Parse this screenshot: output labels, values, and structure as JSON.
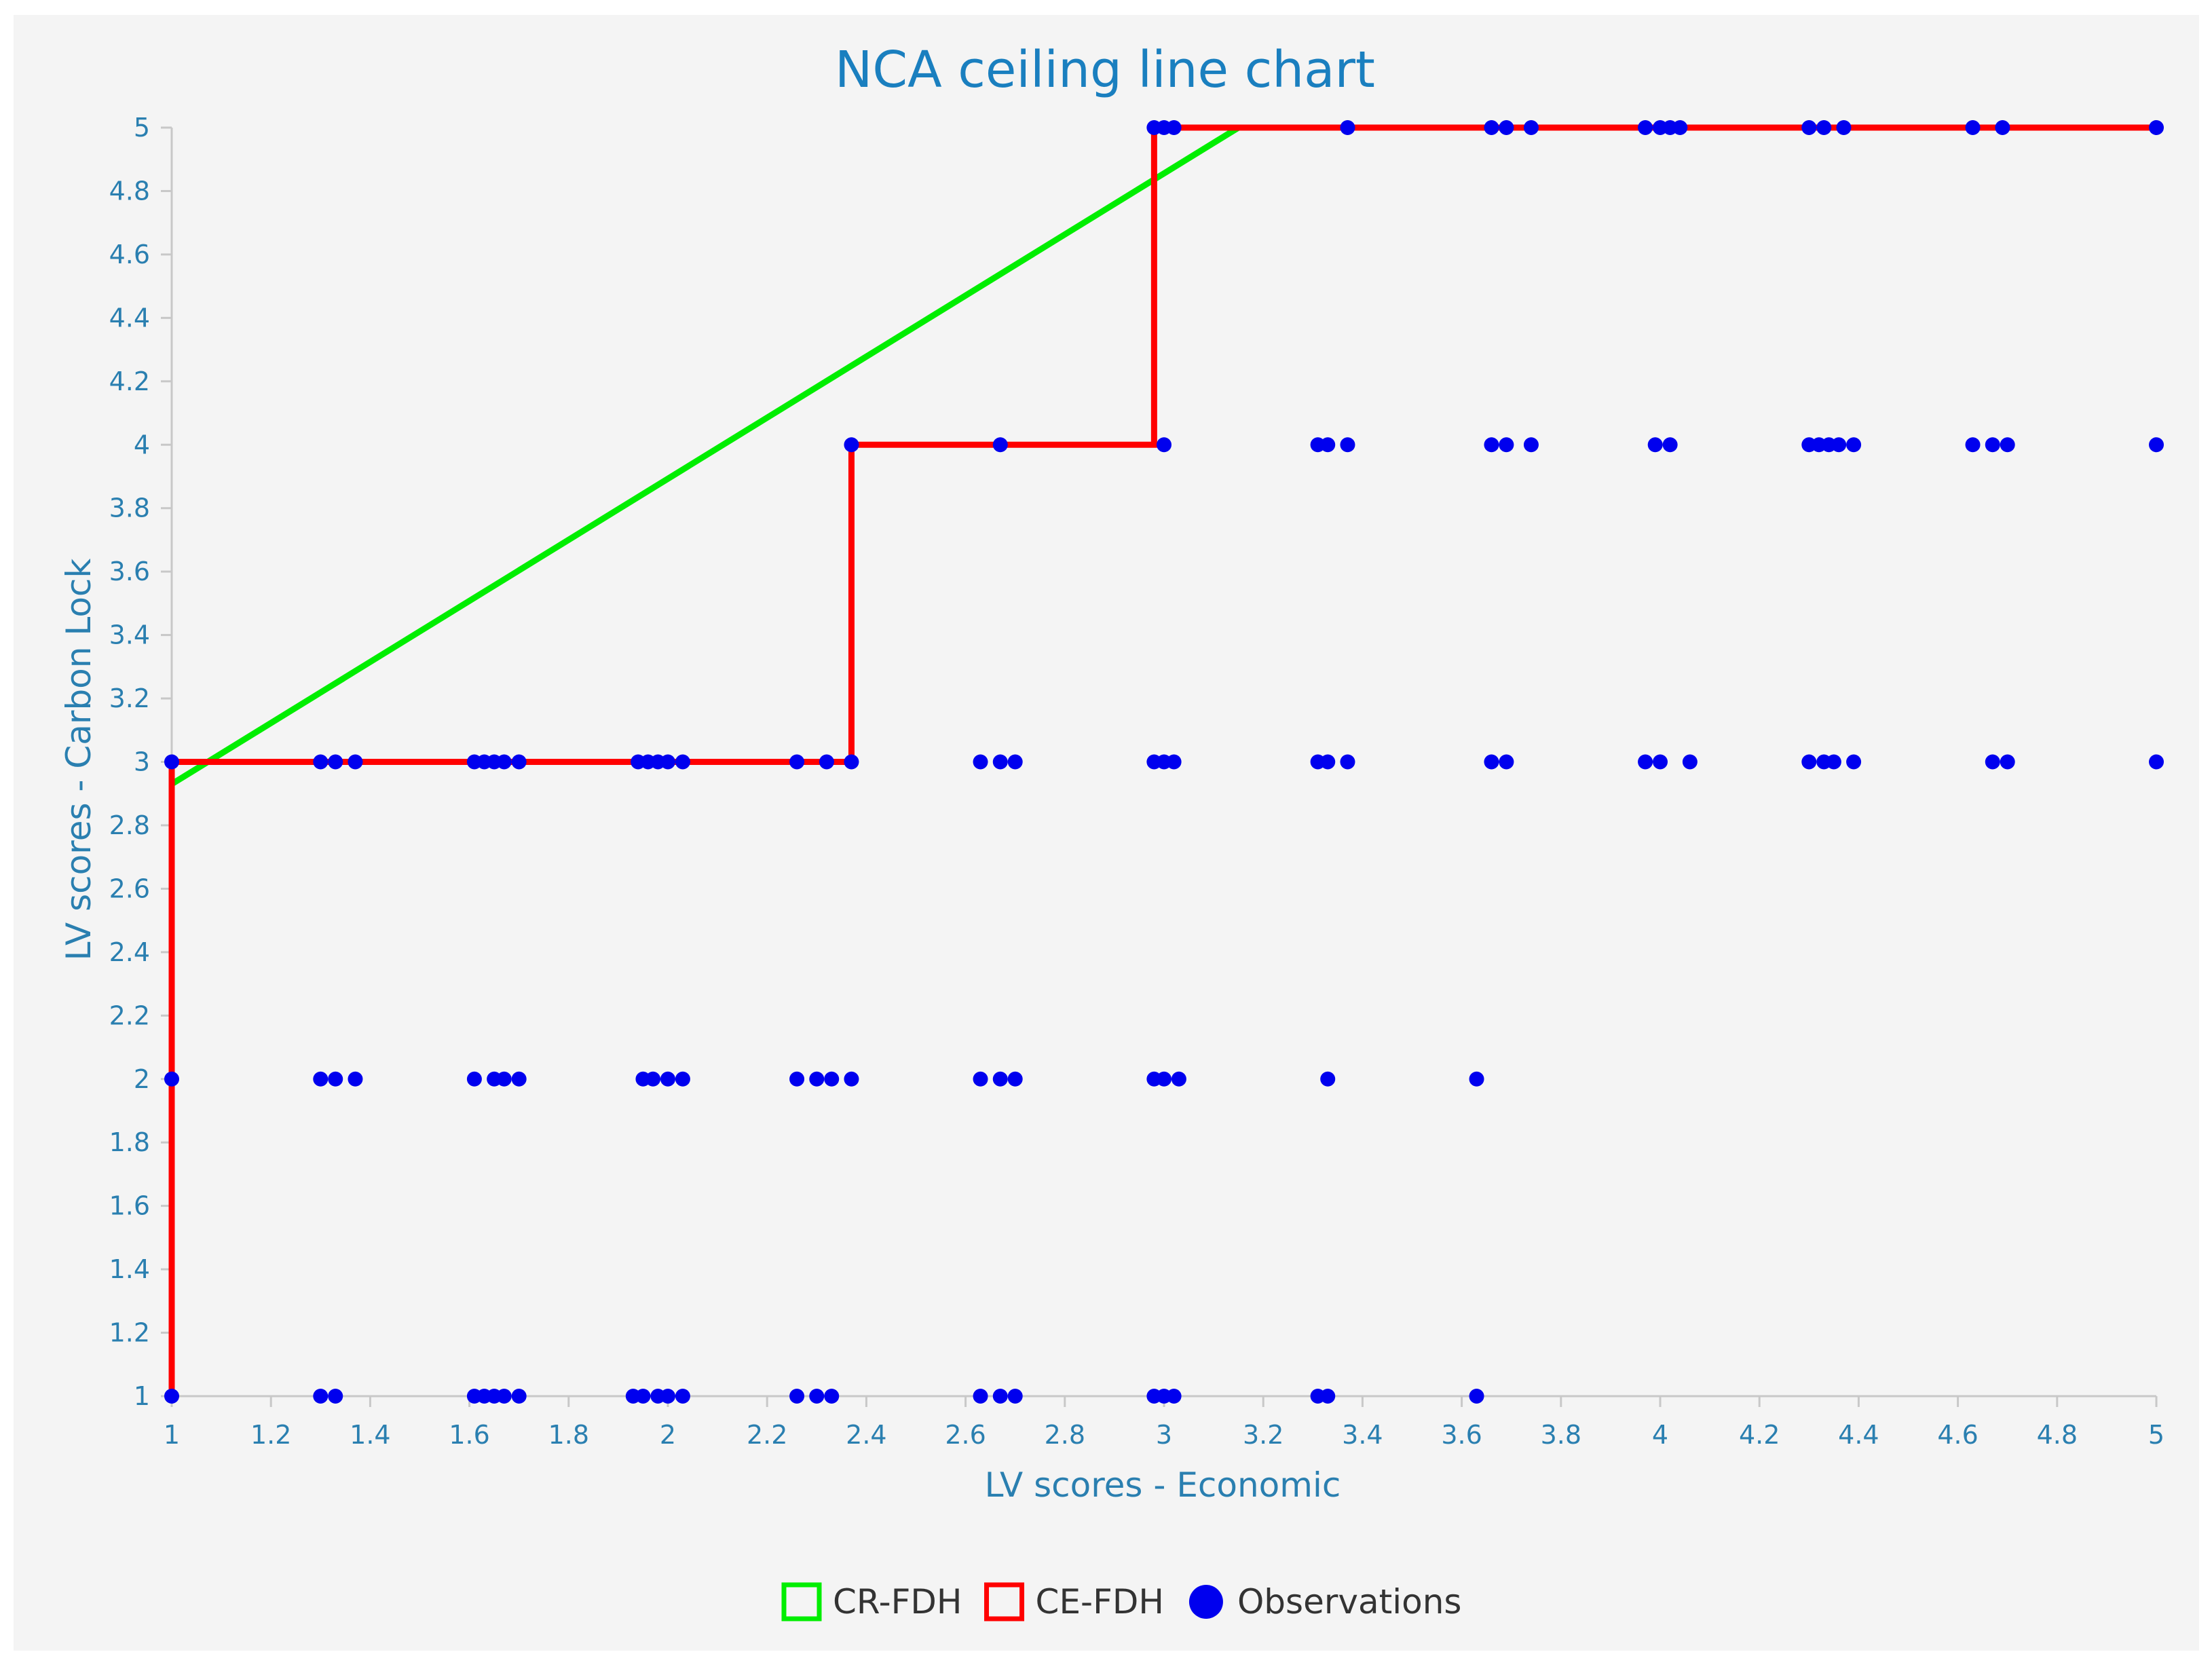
{
  "chart_data": {
    "type": "scatter",
    "title": "NCA ceiling line chart",
    "xlabel": "LV scores - Economic",
    "ylabel": "LV scores - Carbon Lock",
    "xlim": [
      1,
      5
    ],
    "ylim": [
      1,
      5
    ],
    "x_ticks": [
      "1",
      "1.2",
      "1.4",
      "1.6",
      "1.8",
      "2",
      "2.2",
      "2.4",
      "2.6",
      "2.8",
      "3",
      "3.2",
      "3.4",
      "3.6",
      "3.8",
      "4",
      "4.2",
      "4.4",
      "4.6",
      "4.8",
      "5"
    ],
    "y_ticks": [
      "1",
      "1.2",
      "1.4",
      "1.6",
      "1.8",
      "2",
      "2.2",
      "2.4",
      "2.6",
      "2.8",
      "3",
      "3.2",
      "3.4",
      "3.6",
      "3.8",
      "4",
      "4.2",
      "4.4",
      "4.6",
      "4.8",
      "5"
    ],
    "legend_position": "bottom-center",
    "grid": false,
    "series": [
      {
        "name": "CR-FDH",
        "kind": "line",
        "color": "#00ee00",
        "points": [
          [
            1,
            2.93
          ],
          [
            3.15,
            5
          ]
        ]
      },
      {
        "name": "CE-FDH",
        "kind": "step",
        "color": "#ff0000",
        "points": [
          [
            1,
            1
          ],
          [
            1,
            3
          ],
          [
            2.37,
            3
          ],
          [
            2.37,
            4
          ],
          [
            2.98,
            4
          ],
          [
            2.98,
            5
          ],
          [
            5,
            5
          ]
        ]
      },
      {
        "name": "Observations",
        "kind": "scatter",
        "color": "#0000ee",
        "points": [
          [
            2.98,
            5
          ],
          [
            3.0,
            5
          ],
          [
            3.02,
            5
          ],
          [
            3.37,
            5
          ],
          [
            3.66,
            5
          ],
          [
            3.69,
            5
          ],
          [
            3.74,
            5
          ],
          [
            3.97,
            5
          ],
          [
            4.0,
            5
          ],
          [
            4.02,
            5
          ],
          [
            4.04,
            5
          ],
          [
            4.3,
            5
          ],
          [
            4.33,
            5
          ],
          [
            4.37,
            5
          ],
          [
            4.63,
            5
          ],
          [
            4.69,
            5
          ],
          [
            5.0,
            5
          ],
          [
            2.37,
            4
          ],
          [
            2.67,
            4
          ],
          [
            3.0,
            4
          ],
          [
            3.31,
            4
          ],
          [
            3.33,
            4
          ],
          [
            3.37,
            4
          ],
          [
            3.66,
            4
          ],
          [
            3.69,
            4
          ],
          [
            3.74,
            4
          ],
          [
            3.99,
            4
          ],
          [
            4.02,
            4
          ],
          [
            4.3,
            4
          ],
          [
            4.32,
            4
          ],
          [
            4.34,
            4
          ],
          [
            4.36,
            4
          ],
          [
            4.39,
            4
          ],
          [
            4.63,
            4
          ],
          [
            4.67,
            4
          ],
          [
            4.7,
            4
          ],
          [
            5.0,
            4
          ],
          [
            1.0,
            3
          ],
          [
            1.3,
            3
          ],
          [
            1.33,
            3
          ],
          [
            1.37,
            3
          ],
          [
            1.61,
            3
          ],
          [
            1.63,
            3
          ],
          [
            1.65,
            3
          ],
          [
            1.67,
            3
          ],
          [
            1.7,
            3
          ],
          [
            1.94,
            3
          ],
          [
            1.96,
            3
          ],
          [
            1.98,
            3
          ],
          [
            2.0,
            3
          ],
          [
            2.03,
            3
          ],
          [
            2.26,
            3
          ],
          [
            2.32,
            3
          ],
          [
            2.37,
            3
          ],
          [
            2.63,
            3
          ],
          [
            2.67,
            3
          ],
          [
            2.7,
            3
          ],
          [
            2.98,
            3
          ],
          [
            3.0,
            3
          ],
          [
            3.02,
            3
          ],
          [
            3.31,
            3
          ],
          [
            3.33,
            3
          ],
          [
            3.37,
            3
          ],
          [
            3.66,
            3
          ],
          [
            3.69,
            3
          ],
          [
            3.97,
            3
          ],
          [
            4.0,
            3
          ],
          [
            4.06,
            3
          ],
          [
            4.3,
            3
          ],
          [
            4.33,
            3
          ],
          [
            4.35,
            3
          ],
          [
            4.39,
            3
          ],
          [
            4.67,
            3
          ],
          [
            4.7,
            3
          ],
          [
            5.0,
            3
          ],
          [
            1.0,
            2
          ],
          [
            1.3,
            2
          ],
          [
            1.33,
            2
          ],
          [
            1.37,
            2
          ],
          [
            1.61,
            2
          ],
          [
            1.65,
            2
          ],
          [
            1.67,
            2
          ],
          [
            1.7,
            2
          ],
          [
            1.95,
            2
          ],
          [
            1.97,
            2
          ],
          [
            2.0,
            2
          ],
          [
            2.03,
            2
          ],
          [
            2.26,
            2
          ],
          [
            2.3,
            2
          ],
          [
            2.33,
            2
          ],
          [
            2.37,
            2
          ],
          [
            2.63,
            2
          ],
          [
            2.67,
            2
          ],
          [
            2.7,
            2
          ],
          [
            2.98,
            2
          ],
          [
            3.0,
            2
          ],
          [
            3.03,
            2
          ],
          [
            3.33,
            2
          ],
          [
            3.63,
            2
          ],
          [
            1.0,
            1
          ],
          [
            1.3,
            1
          ],
          [
            1.33,
            1
          ],
          [
            1.61,
            1
          ],
          [
            1.63,
            1
          ],
          [
            1.65,
            1
          ],
          [
            1.67,
            1
          ],
          [
            1.7,
            1
          ],
          [
            1.93,
            1
          ],
          [
            1.95,
            1
          ],
          [
            1.98,
            1
          ],
          [
            2.0,
            1
          ],
          [
            2.03,
            1
          ],
          [
            2.26,
            1
          ],
          [
            2.3,
            1
          ],
          [
            2.33,
            1
          ],
          [
            2.63,
            1
          ],
          [
            2.67,
            1
          ],
          [
            2.7,
            1
          ],
          [
            2.98,
            1
          ],
          [
            3.0,
            1
          ],
          [
            3.02,
            1
          ],
          [
            3.31,
            1
          ],
          [
            3.33,
            1
          ],
          [
            3.63,
            1
          ]
        ]
      }
    ]
  }
}
